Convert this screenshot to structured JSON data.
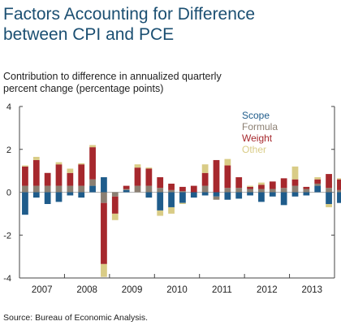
{
  "title_lines": [
    "Factors Accounting for Difference",
    "between CPI and PCE"
  ],
  "subtitle_lines": [
    "Contribution to difference in annualized quarterly",
    "percent change (percentage points)"
  ],
  "source": "Source: Bureau of Economic Analysis.",
  "colors": {
    "scope": "#1f5c8b",
    "formula": "#8b7f72",
    "weight": "#a6282d",
    "other": "#d9cc86",
    "axis": "#444444",
    "grid_zero": "#999999"
  },
  "chart_data": {
    "type": "bar",
    "stacked": true,
    "ylim": [
      -4,
      4
    ],
    "y_ticks": [
      4,
      2,
      0,
      -2,
      -4
    ],
    "x_tick_labels": [
      "2007",
      "2008",
      "2009",
      "2010",
      "2011",
      "2012",
      "2013"
    ],
    "legend": {
      "placement": "top-right",
      "entries": [
        "Scope",
        "Formula",
        "Weight",
        "Other"
      ]
    },
    "series": [
      {
        "name": "Scope",
        "values": [
          -1.05,
          -0.25,
          -0.55,
          -0.45,
          -0.15,
          -0.25,
          0.3,
          0.7,
          0.0,
          0.1,
          0.0,
          -0.25,
          -0.85,
          -0.7,
          -0.5,
          -0.25,
          -0.15,
          -0.2,
          -0.35,
          -0.3,
          -0.15,
          -0.45,
          -0.2,
          -0.6,
          -0.2,
          -0.15,
          0.3,
          -0.55,
          -0.5
        ]
      },
      {
        "name": "Formula",
        "values": [
          0.3,
          0.3,
          0.3,
          0.3,
          0.3,
          0.3,
          0.3,
          -0.5,
          -0.2,
          0.05,
          0.3,
          0.3,
          0.2,
          0.1,
          0.05,
          0.0,
          0.3,
          -0.15,
          0.2,
          0.2,
          0.15,
          0.15,
          0.15,
          0.2,
          0.3,
          0.15,
          0.1,
          0.2,
          0.1
        ]
      },
      {
        "name": "Weight",
        "values": [
          0.9,
          1.2,
          0.6,
          1.0,
          0.6,
          1.0,
          1.5,
          -2.85,
          -0.8,
          0.15,
          0.85,
          0.8,
          0.5,
          0.3,
          0.2,
          0.3,
          0.6,
          1.5,
          1.05,
          0.5,
          0.1,
          0.2,
          0.35,
          0.45,
          0.3,
          0.1,
          0.2,
          0.65,
          0.5
        ]
      },
      {
        "name": "Other",
        "values": [
          0.05,
          0.15,
          0.0,
          0.1,
          0.2,
          0.05,
          0.1,
          -0.6,
          -0.3,
          0.0,
          0.15,
          0.05,
          -0.25,
          -0.3,
          -0.05,
          0.0,
          0.4,
          0.0,
          0.3,
          0.0,
          0.05,
          0.1,
          0.0,
          0.0,
          0.6,
          0.0,
          0.1,
          -0.15,
          0.05
        ]
      }
    ]
  }
}
